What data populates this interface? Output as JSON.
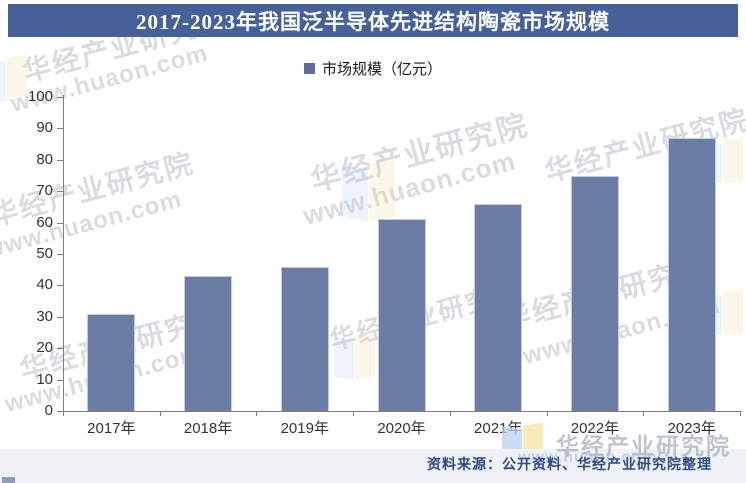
{
  "title": "2017-2023年我国泛半导体先进结构陶瓷市场规模",
  "legend": {
    "label": "市场规模（亿元）"
  },
  "colors": {
    "banner_bg": "#46609A",
    "bar": "#6B7CA5",
    "bar_border": "#C3CCDD",
    "legend_swatch": "#5B6F9E",
    "axis": "#7F7F7F",
    "strip_bg": "#EFF1F6",
    "source_text": "#2E4A87"
  },
  "chart_data": {
    "type": "bar",
    "title": "2017-2023年我国泛半导体先进结构陶瓷市场规模",
    "categories": [
      "2017年",
      "2018年",
      "2019年",
      "2020年",
      "2021年",
      "2022年",
      "2023年"
    ],
    "values": [
      31,
      43,
      46,
      61,
      66,
      75,
      87
    ],
    "series": [
      {
        "name": "市场规模（亿元）",
        "values": [
          31,
          43,
          46,
          61,
          66,
          75,
          87
        ]
      }
    ],
    "xlabel": "",
    "ylabel": "",
    "ylim": [
      0,
      100
    ],
    "ytick_step": 10,
    "yticks": [
      0,
      10,
      20,
      30,
      40,
      50,
      60,
      70,
      80,
      90,
      100
    ],
    "grid": false,
    "legend_entries": [
      "市场规模（亿元）"
    ],
    "legend_position": "top"
  },
  "watermark": {
    "brand": "华经产业研究院",
    "site": "www.huaon.com"
  },
  "source": {
    "text": "资料来源：公开资料、华经产业研究院整理"
  }
}
